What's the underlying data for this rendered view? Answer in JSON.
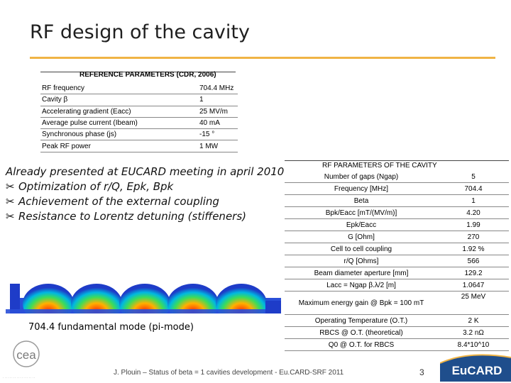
{
  "title": "RF design of the cavity",
  "reference": {
    "title": "REFERENCE PARAMETERS (CDR, 2006)",
    "rows": [
      {
        "k": "RF frequency",
        "v": "704.4 MHz"
      },
      {
        "k": "Cavity β",
        "v": "1"
      },
      {
        "k": "Accelerating gradient (Eacc)",
        "v": "25 MV/m"
      },
      {
        "k": "Average pulse current (Ibeam)",
        "v": "40 mA"
      },
      {
        "k": "Synchronous phase (js)",
        "v": "-15 °"
      },
      {
        "k": "Peak RF power",
        "v": "1 MW"
      }
    ]
  },
  "bullets": {
    "intro": "Already presented at EUCARD meeting in april 2010",
    "symbol": "✂",
    "items": [
      "Optimization of r/Q, Epk, Bpk",
      "Achievement of the external coupling",
      "Resistance to Lorentz detuning (stiffeners)"
    ]
  },
  "caption": "704.4 fundamental mode (pi-mode)",
  "rf_params": {
    "title": "RF PARAMETERS OF THE CAVITY",
    "rows": [
      {
        "k": "Number of gaps (Ngap)",
        "v": "5"
      },
      {
        "k": "Frequency [MHz]",
        "v": "704.4"
      },
      {
        "k": "Beta",
        "v": "1"
      },
      {
        "k": "Bpk/Eacc [mT/(MV/m)]",
        "v": "4.20"
      },
      {
        "k": "Epk/Eacc",
        "v": "1.99"
      },
      {
        "k": "G [Ohm]",
        "v": "270"
      },
      {
        "k": "Cell to cell coupling",
        "v": "1.92 %"
      },
      {
        "k": "r/Q [Ohms]",
        "v": "566"
      },
      {
        "k": "Beam diameter aperture [mm]",
        "v": "129.2"
      },
      {
        "k": "Lacc = Ngap β.λ/2 [m]",
        "v": "1.0647"
      },
      {
        "k": "Maximum energy gain @ Bpk = 100 mT",
        "v": "25 MeV"
      },
      {
        "k": "Operating Temperature (O.T.)",
        "v": "2 K"
      },
      {
        "k": "RBCS @ O.T. (theoretical)",
        "v": "3.2 nΩ"
      },
      {
        "k": "Q0 @ O.T. for RBCS",
        "v": "8.4*10^10"
      }
    ]
  },
  "footer": "J. Plouin – Status of beta = 1 cavities development - Eu.CARD-SRF 2011",
  "page_number": "3",
  "logos": {
    "left": "cea",
    "right": "EuCARD"
  },
  "colors": {
    "accent": "#f0b445",
    "cavity_blue": "#1e3cc8",
    "eucard_blue": "#1f4e8c"
  }
}
